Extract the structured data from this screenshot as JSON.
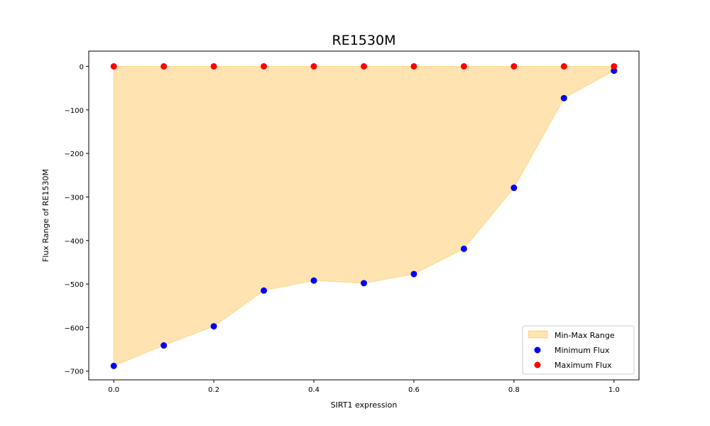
{
  "chart_data": {
    "type": "scatter",
    "title": "RE1530M",
    "xlabel": "SIRT1 expression",
    "ylabel": "Flux Range of RE1530M",
    "xlim": [
      -0.05,
      1.05
    ],
    "ylim": [
      -720,
      35
    ],
    "x": [
      0.0,
      0.1,
      0.2,
      0.3,
      0.4,
      0.5,
      0.6,
      0.7,
      0.8,
      0.9,
      1.0
    ],
    "series": [
      {
        "name": "Minimum Flux",
        "color": "#0000ff",
        "values": [
          -688,
          -641,
          -597,
          -515,
          -492,
          -498,
          -477,
          -419,
          -279,
          -73,
          -10
        ]
      },
      {
        "name": "Maximum Flux",
        "color": "#ff0000",
        "values": [
          0,
          0,
          0,
          0,
          0,
          0,
          0,
          0,
          0,
          0,
          0
        ]
      }
    ],
    "fill": {
      "name": "Min-Max Range",
      "color": "#ffa500",
      "opacity": 0.3
    },
    "xticks": [
      0.0,
      0.2,
      0.4,
      0.6,
      0.8,
      1.0
    ],
    "xtick_labels": [
      "0.0",
      "0.2",
      "0.4",
      "0.6",
      "0.8",
      "1.0"
    ],
    "yticks": [
      0,
      -100,
      -200,
      -300,
      -400,
      -500,
      -600,
      -700
    ],
    "ytick_labels": [
      "0",
      "−100",
      "−200",
      "−300",
      "−400",
      "−500",
      "−600",
      "−700"
    ],
    "legend": {
      "position": "lower right",
      "entries": [
        "Min-Max Range",
        "Minimum Flux",
        "Maximum Flux"
      ]
    },
    "grid": false
  }
}
